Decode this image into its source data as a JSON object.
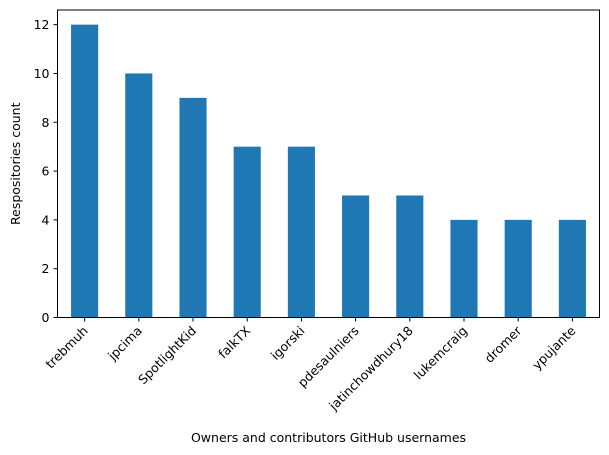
{
  "chart_data": {
    "type": "bar",
    "categories": [
      "trebmuh",
      "jpcima",
      "SpotlightKid",
      "falkTX",
      "igorski",
      "pdesaulniers",
      "jatinchowdhury18",
      "lukemcraig",
      "dromer",
      "ypujante"
    ],
    "values": [
      12,
      10,
      9,
      7,
      7,
      5,
      5,
      4,
      4,
      4
    ],
    "title": "",
    "xlabel": "Owners and contributors GitHub usernames",
    "ylabel": "Respositories count",
    "ylim": [
      0,
      12.6
    ],
    "yticks": [
      0,
      2,
      4,
      6,
      8,
      10,
      12
    ],
    "grid": false,
    "bar_color": "#1f77b4"
  }
}
